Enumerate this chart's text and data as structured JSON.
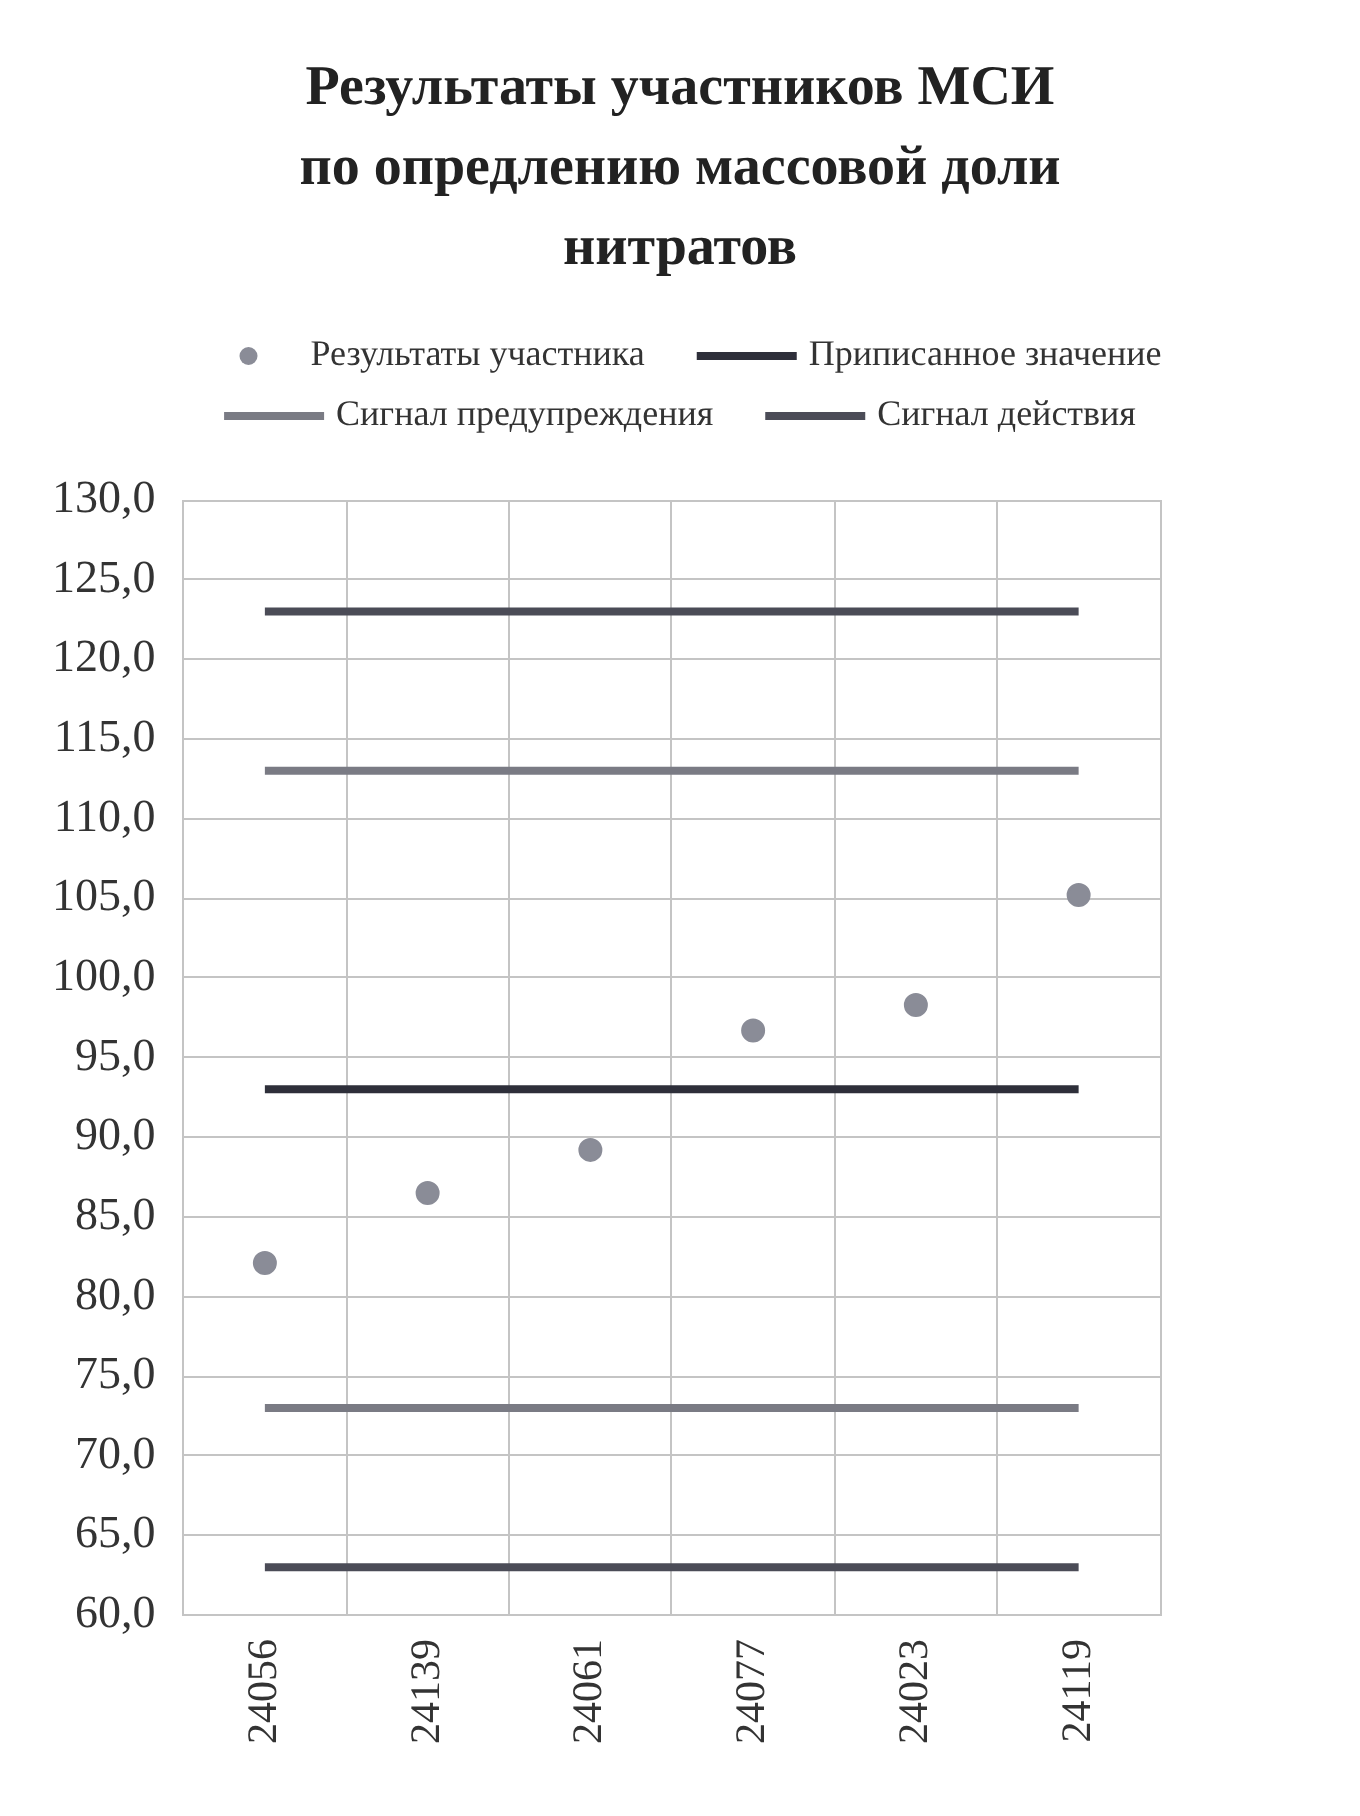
{
  "chart_data": {
    "type": "scatter",
    "title": "Результаты участников МСИ по опредлению массовой доли нитратов",
    "categories": [
      "24056",
      "24139",
      "24061",
      "24077",
      "24023",
      "24119"
    ],
    "series": [
      {
        "name": "Результаты участника",
        "color": "#8a8c97",
        "values": [
          82.1,
          86.5,
          89.2,
          96.7,
          98.3,
          105.2
        ]
      },
      {
        "name": "Приписанное значение",
        "type": "line",
        "marker": "none",
        "color": "#2e2f3a",
        "values": [
          93,
          93,
          93,
          93,
          93,
          93
        ]
      },
      {
        "name": "Сигнал предупреждения",
        "type": "line",
        "marker": "none",
        "color": "#7a7b84",
        "values": [
          113,
          113,
          113,
          113,
          113,
          113
        ]
      },
      {
        "type": "line",
        "marker": "none",
        "color": "#7a7b84",
        "values": [
          73,
          73,
          73,
          73,
          73,
          73
        ]
      },
      {
        "name": "Сигнал действия",
        "type": "line",
        "marker": "none",
        "color": "#4b4c57",
        "values": [
          123,
          123,
          123,
          123,
          123,
          123
        ]
      },
      {
        "type": "line",
        "marker": "none",
        "color": "#4b4c57",
        "values": [
          63,
          63,
          63,
          63,
          63,
          63
        ]
      }
    ],
    "ylim": [
      60,
      130
    ],
    "yticks": [
      {
        "value": 60,
        "label": "60,0"
      },
      {
        "value": 65,
        "label": "65,0"
      },
      {
        "value": 70,
        "label": "70,0"
      },
      {
        "value": 75,
        "label": "75,0"
      },
      {
        "value": 80,
        "label": "80,0"
      },
      {
        "value": 85,
        "label": "85,0"
      },
      {
        "value": 90,
        "label": "90,0"
      },
      {
        "value": 95,
        "label": "95,0"
      },
      {
        "value": 100,
        "label": "100,0"
      },
      {
        "value": 105,
        "label": "105,0"
      },
      {
        "value": 110,
        "label": "110,0"
      },
      {
        "value": 115,
        "label": "115,0"
      },
      {
        "value": 120,
        "label": "120,0"
      },
      {
        "value": 125,
        "label": "125,0"
      },
      {
        "value": 130,
        "label": "130,0"
      }
    ],
    "grid": true,
    "legend": "top",
    "marker": "circle",
    "line_style": "solid"
  }
}
